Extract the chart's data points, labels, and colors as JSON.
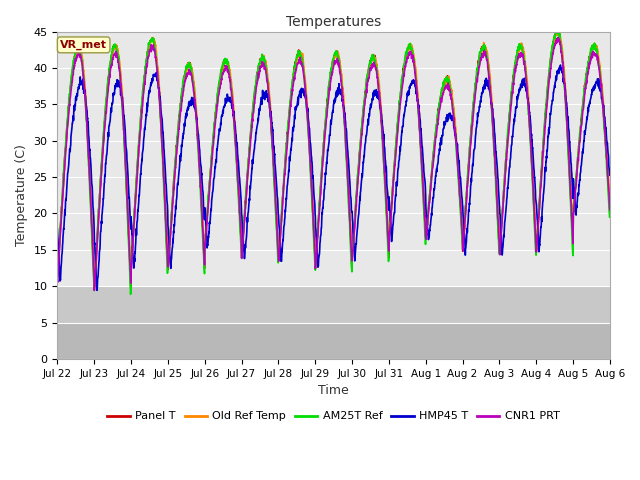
{
  "title": "Temperatures",
  "xlabel": "Time",
  "ylabel": "Temperature (C)",
  "ylim": [
    0,
    45
  ],
  "yticks": [
    0,
    5,
    10,
    15,
    20,
    25,
    30,
    35,
    40,
    45
  ],
  "series": {
    "Panel T": {
      "color": "#cc0000",
      "lw": 1.2
    },
    "Old Ref Temp": {
      "color": "#ff8800",
      "lw": 1.2
    },
    "AM25T Ref": {
      "color": "#00dd00",
      "lw": 1.2
    },
    "HMP45 T": {
      "color": "#0000cc",
      "lw": 1.2
    },
    "CNR1 PRT": {
      "color": "#bb00bb",
      "lw": 1.2
    }
  },
  "tick_labels": [
    "Jul 22",
    "Jul 23",
    "Jul 24",
    "Jul 25",
    "Jul 26",
    "Jul 27",
    "Jul 28",
    "Jul 29",
    "Jul 30",
    "Jul 31",
    "Aug 1",
    "Aug 2",
    "Aug 3",
    "Aug 4",
    "Aug 5",
    "Aug 6"
  ],
  "n_days": 15,
  "points_per_day": 144,
  "vr_met_label": "VR_met",
  "bg_main": "#e8e8e8",
  "bg_dark": "#c8c8c8",
  "grid_color": "#ffffff",
  "band_thresholds": [
    10,
    5
  ],
  "daily_maxes": [
    43,
    43,
    44,
    40.5,
    41,
    41.5,
    42,
    42,
    41.5,
    43,
    38.5,
    43,
    43,
    45,
    43
  ],
  "daily_mins": [
    11,
    9.5,
    12.5,
    12.5,
    15.5,
    14,
    13.5,
    12.5,
    14,
    16.5,
    16.5,
    15,
    14.5,
    15,
    20
  ]
}
